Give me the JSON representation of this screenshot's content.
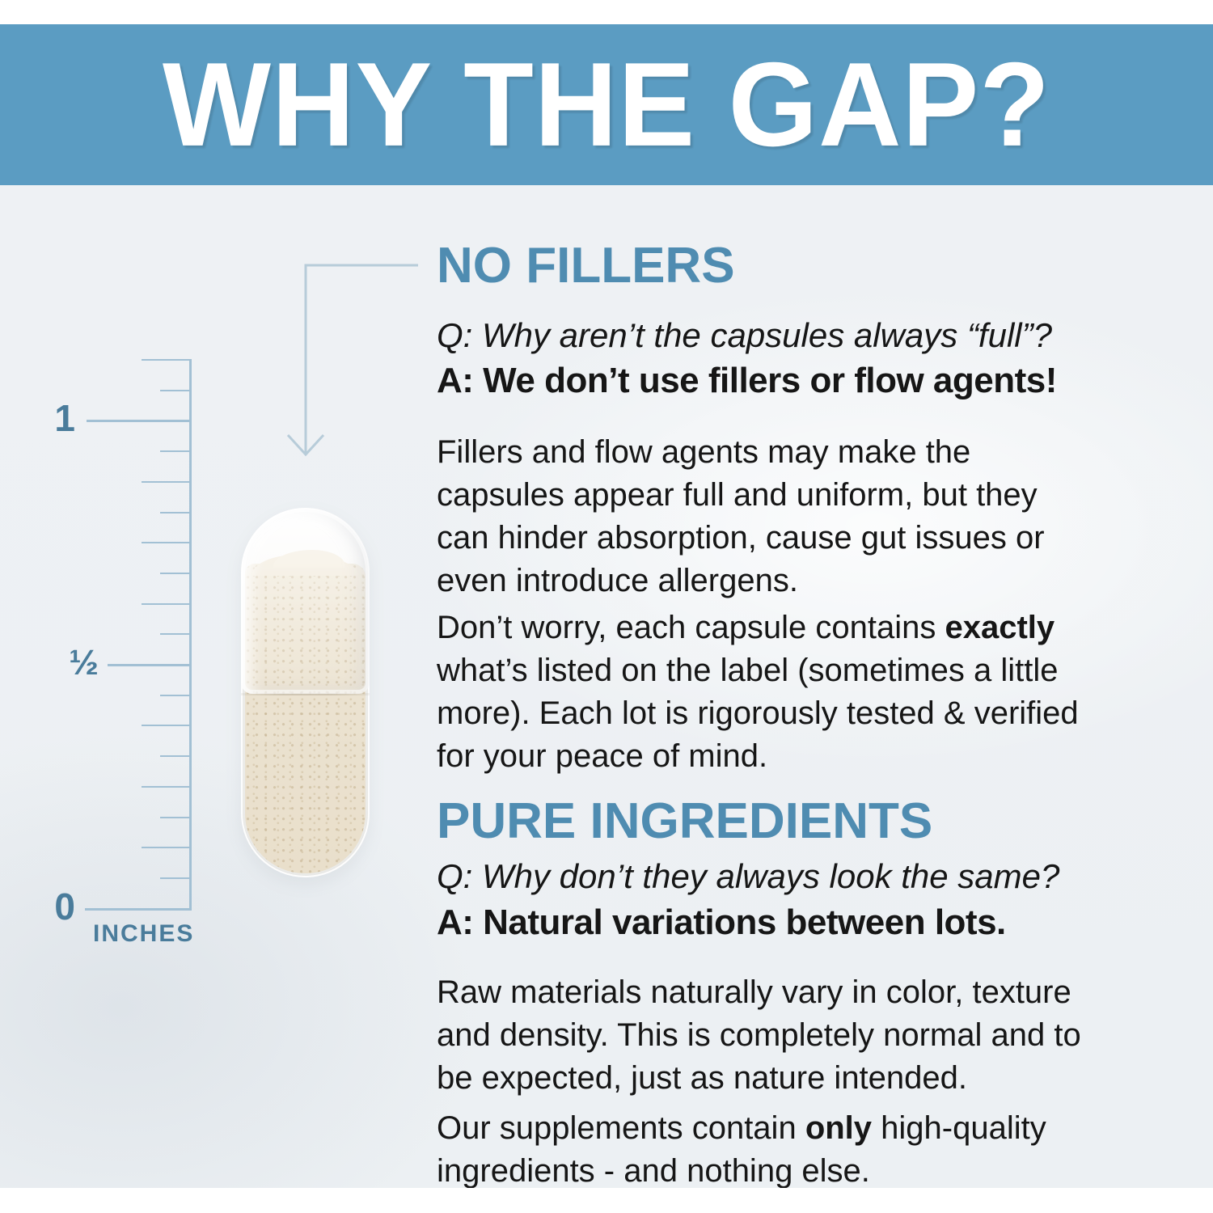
{
  "banner": {
    "title": "WHY THE GAP?"
  },
  "ruler": {
    "marks": [
      "1",
      "½",
      "0"
    ],
    "unit": "INCHES"
  },
  "sections": [
    {
      "heading": "NO FILLERS",
      "question": "Q: Why aren’t the capsules always “full”?",
      "answer": "A: We don’t use fillers or flow agents!",
      "paragraphs": [
        [
          {
            "t": "Fillers and flow agents may make the\ncapsules appear full and uniform, but they\ncan hinder absorption, cause gut issues or\neven introduce allergens."
          }
        ],
        [
          {
            "t": "Don’t worry, each capsule contains "
          },
          {
            "t": "exactly",
            "b": true
          },
          {
            "t": "\nwhat’s listed on the label (sometimes a little\nmore). Each lot is rigorously tested & verified\nfor your peace of mind."
          }
        ]
      ]
    },
    {
      "heading": "PURE INGREDIENTS",
      "question": "Q: Why don’t they always look the same?",
      "answer": "A: Natural variations between lots.",
      "paragraphs": [
        [
          {
            "t": "Raw materials naturally vary in color, texture\nand density. This is completely normal and to\nbe expected, just as nature intended."
          }
        ],
        [
          {
            "t": "Our supplements contain "
          },
          {
            "t": "only",
            "b": true
          },
          {
            "t": " high-quality\ningredients - and nothing else."
          }
        ]
      ]
    }
  ],
  "colors": {
    "banner_bg": "#5b9cc2",
    "heading": "#4f8cb1",
    "ruler": "#4a7c9b",
    "ruler_line": "#a2c0d4",
    "arrow": "#b7ccd9",
    "body_text": "#161616",
    "background": "#eef1f4"
  }
}
